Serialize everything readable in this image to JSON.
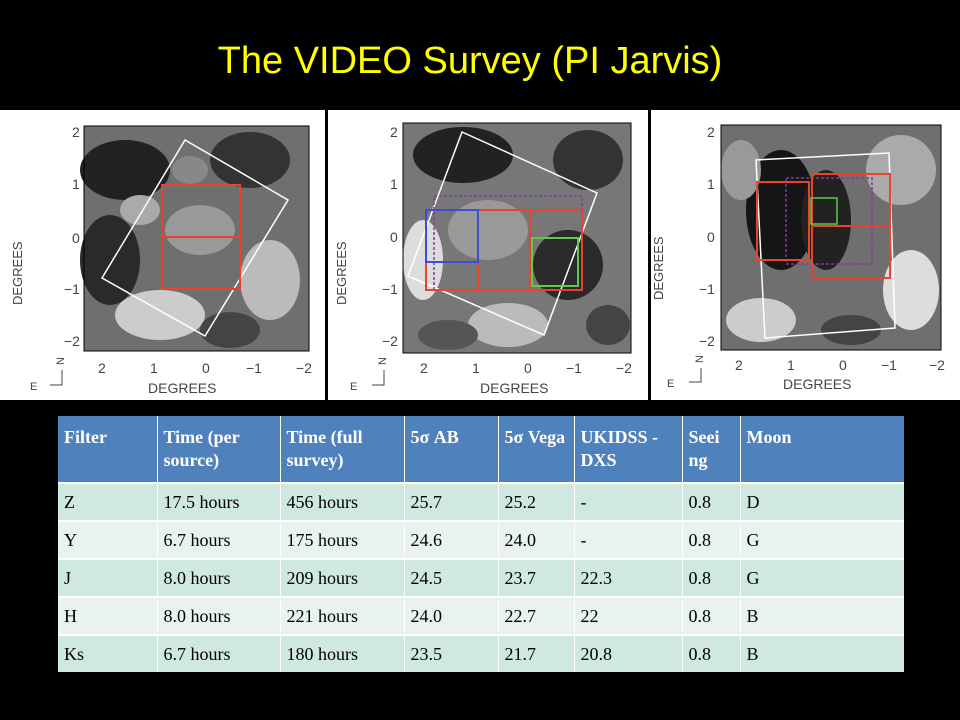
{
  "slide": {
    "title": "The VIDEO Survey (PI Jarvis)"
  },
  "figures": [
    {
      "x_axis_label": "DEGREES",
      "y_axis_label": "DEGREES",
      "x_ticks": [
        "2",
        "1",
        "0",
        "−1",
        "−2"
      ],
      "y_ticks": [
        "2",
        "1",
        "0",
        "−1",
        "−2"
      ],
      "compass": {
        "north": "N",
        "east": "E"
      }
    },
    {
      "x_axis_label": "DEGREES",
      "y_axis_label": "DEGREES",
      "x_ticks": [
        "2",
        "1",
        "0",
        "−1",
        "−2"
      ],
      "y_ticks": [
        "2",
        "1",
        "0",
        "−1",
        "−2"
      ],
      "compass": {
        "north": "N",
        "east": "E"
      }
    },
    {
      "x_axis_label": "DEGREES",
      "y_axis_label": "DEGREES",
      "x_ticks": [
        "2",
        "1",
        "0",
        "−1",
        "−2"
      ],
      "y_ticks": [
        "2",
        "1",
        "0",
        "−1",
        "−2"
      ],
      "compass": {
        "north": "N",
        "east": "E"
      }
    }
  ],
  "table": {
    "headers": [
      "Filter",
      "Time (per source)",
      "Time (full survey)",
      "5σ AB",
      "5σ Vega",
      "UKIDSS -DXS",
      "Seei ng",
      "Moon"
    ],
    "rows": [
      [
        "Z",
        "17.5 hours",
        "456 hours",
        "25.7",
        "25.2",
        "-",
        "0.8",
        "D"
      ],
      [
        "Y",
        "6.7 hours",
        "175 hours",
        "24.6",
        "24.0",
        "-",
        "0.8",
        "G"
      ],
      [
        "J",
        "8.0 hours",
        "209 hours",
        "24.5",
        "23.7",
        "22.3",
        "0.8",
        "G"
      ],
      [
        "H",
        "8.0 hours",
        "221 hours",
        "24.0",
        "22.7",
        "22",
        "0.8",
        "B"
      ],
      [
        "Ks",
        "6.7 hours",
        "180 hours",
        "23.5",
        "21.7",
        "20.8",
        "0.8",
        "B"
      ]
    ]
  }
}
